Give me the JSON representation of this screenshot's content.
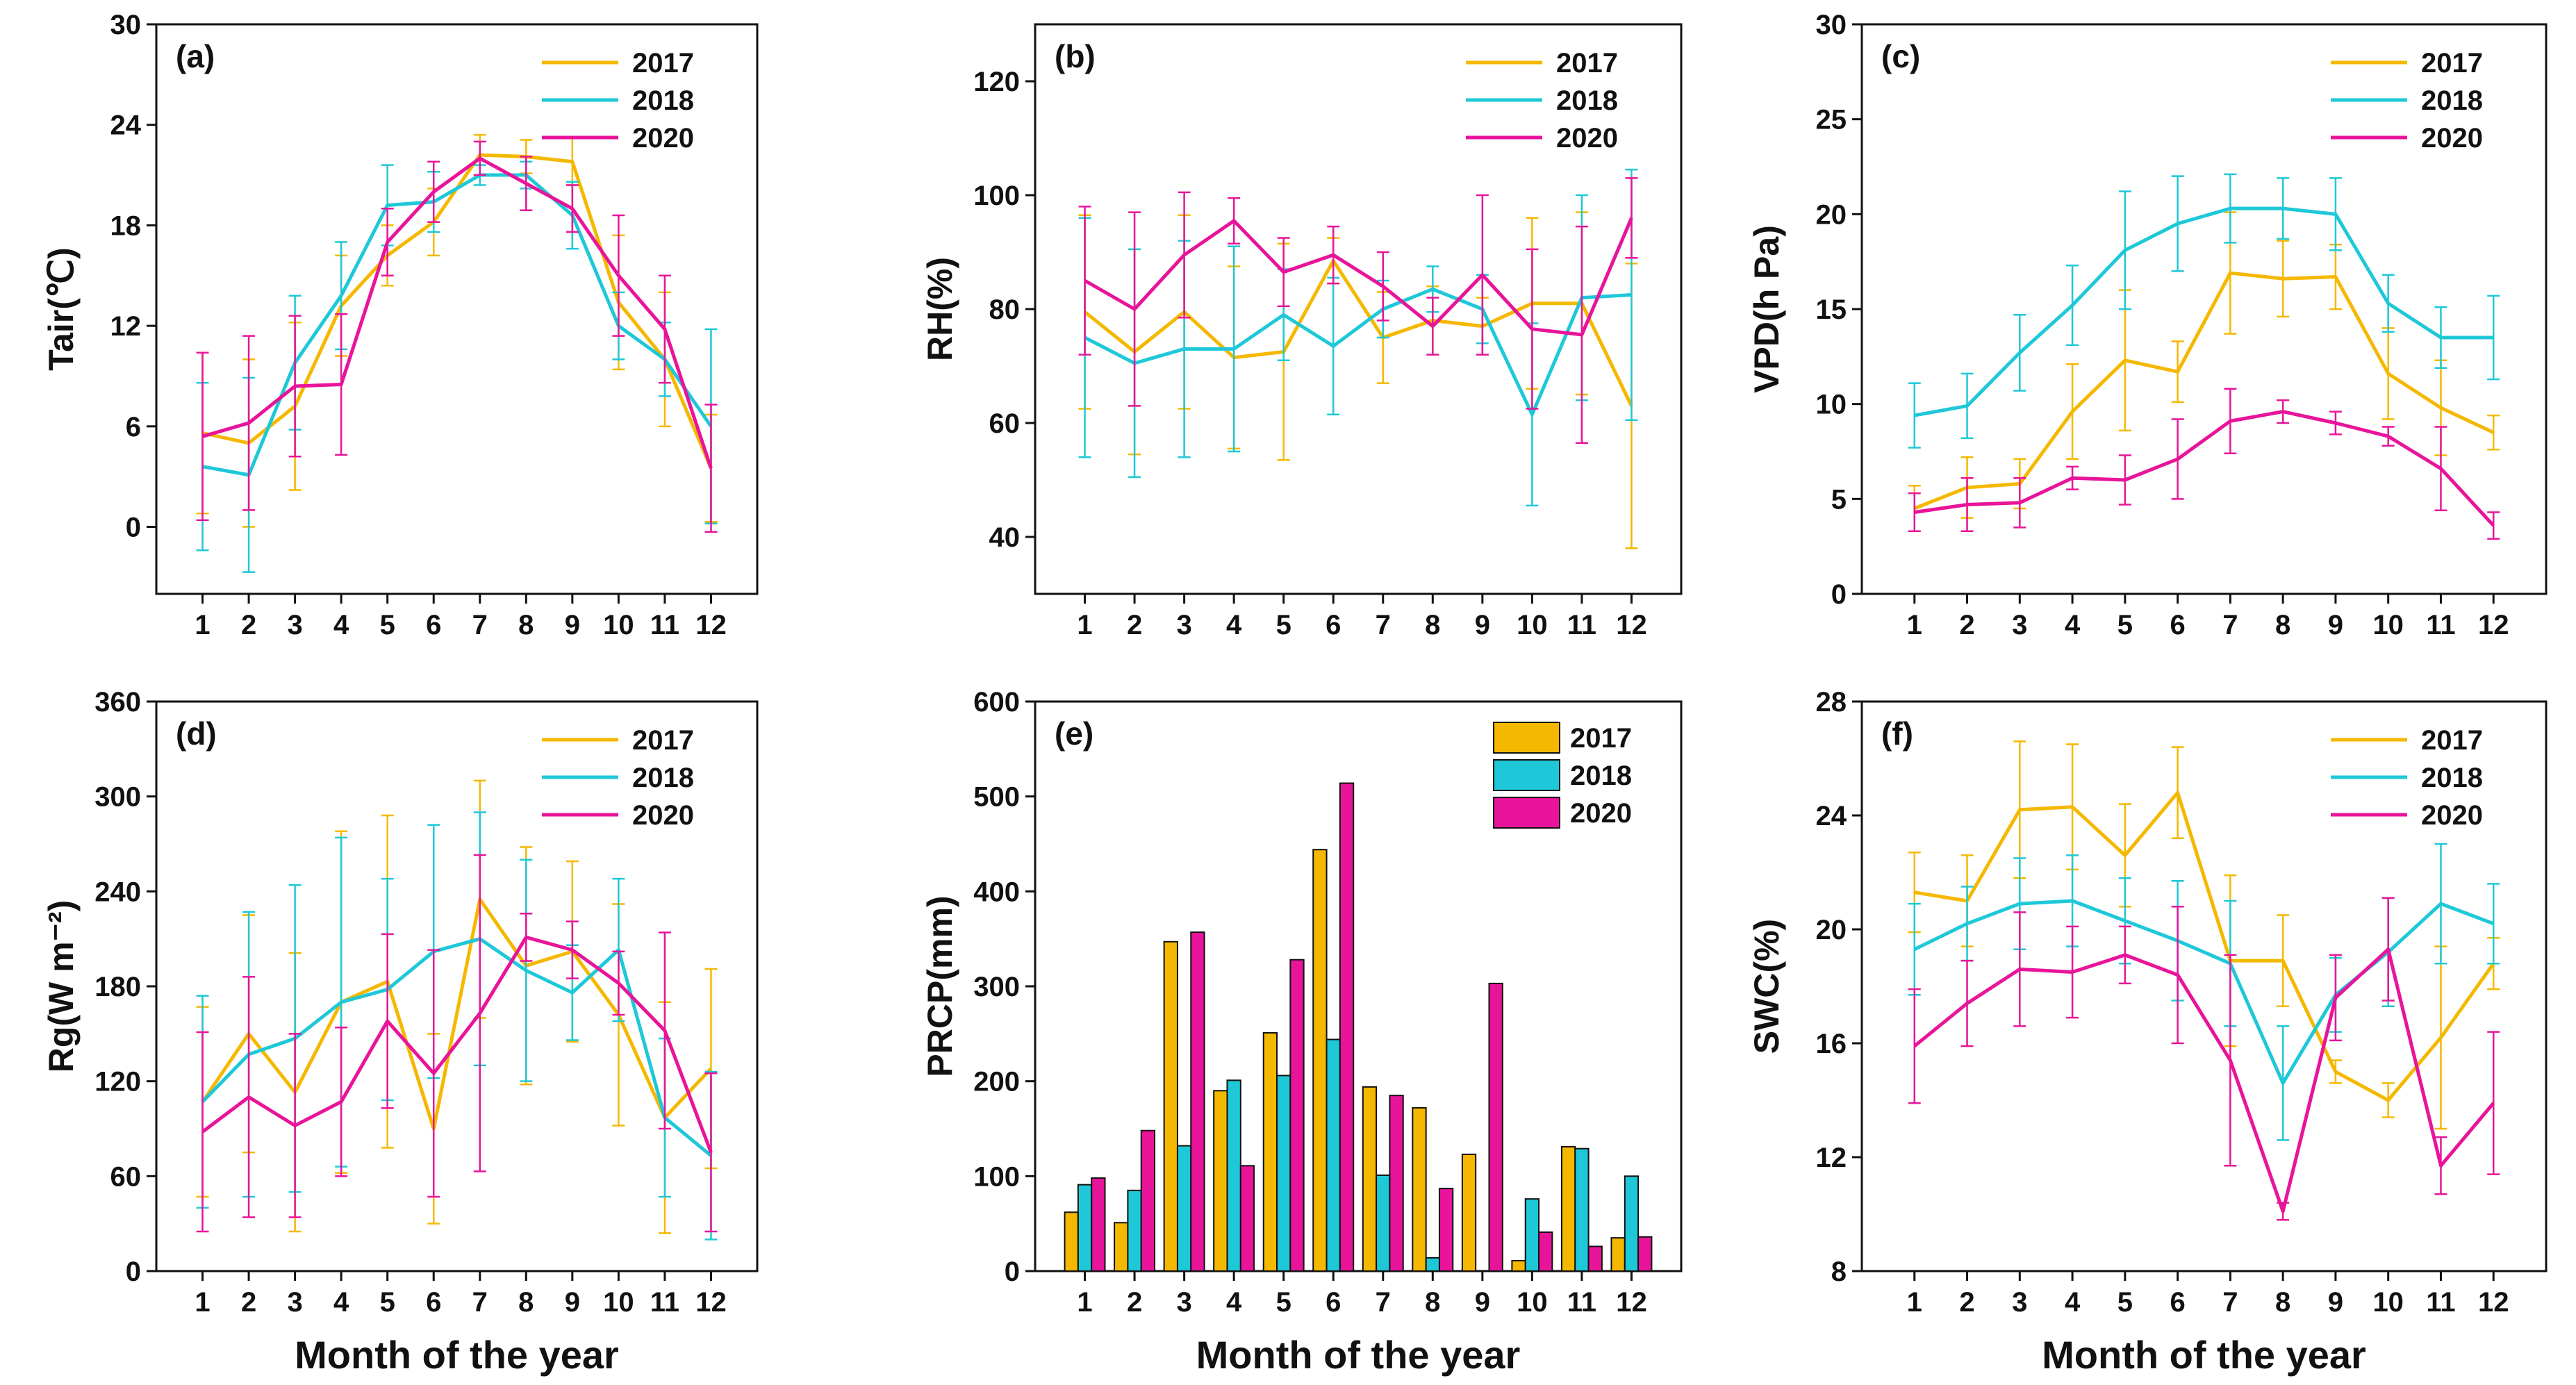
{
  "colors": {
    "2017": "#F5B800",
    "2018": "#1EC8D8",
    "2020": "#E8149A"
  },
  "chart_data": [
    {
      "id": "a",
      "type": "line",
      "panel_label": "(a)",
      "ylabel": "Tair(℃)",
      "xlabel": "",
      "x": [
        1,
        2,
        3,
        4,
        5,
        6,
        7,
        8,
        9,
        10,
        11,
        12
      ],
      "x_tick_labels": [
        "1",
        "2",
        "3",
        "4",
        "5",
        "6",
        "7",
        "8",
        "9",
        "10",
        "11",
        "12"
      ],
      "ylim": [
        -4,
        30
      ],
      "y_tick_values": [
        0,
        6,
        12,
        18,
        24,
        30
      ],
      "y_tick_labels": [
        "0",
        "6",
        "12",
        "18",
        "24",
        "30"
      ],
      "legend_position": "top-right",
      "series": [
        {
          "name": "2017",
          "values": [
            5.6,
            5.0,
            7.2,
            13.2,
            16.2,
            18.2,
            22.2,
            22.1,
            21.8,
            13.4,
            10.0,
            3.5
          ],
          "errors": [
            4.8,
            5.0,
            5.0,
            3.0,
            1.8,
            2.0,
            1.2,
            1.0,
            1.4,
            4.0,
            4.0,
            3.2
          ]
        },
        {
          "name": "2018",
          "values": [
            3.6,
            3.1,
            9.8,
            13.8,
            19.2,
            19.4,
            21.0,
            21.0,
            18.6,
            12.0,
            10.0,
            6.0
          ],
          "errors": [
            5.0,
            5.8,
            4.0,
            3.2,
            2.4,
            1.8,
            0.6,
            0.8,
            2.0,
            2.0,
            2.2,
            5.8
          ]
        },
        {
          "name": "2020",
          "values": [
            5.4,
            6.2,
            8.4,
            8.5,
            17.0,
            20.0,
            22.0,
            20.5,
            19.0,
            15.0,
            11.8,
            3.5
          ],
          "errors": [
            5.0,
            5.2,
            4.2,
            4.2,
            2.0,
            1.8,
            1.0,
            1.6,
            1.4,
            3.6,
            3.2,
            3.8
          ]
        }
      ]
    },
    {
      "id": "b",
      "type": "line",
      "panel_label": "(b)",
      "ylabel": "RH(%)",
      "xlabel": "",
      "x": [
        1,
        2,
        3,
        4,
        5,
        6,
        7,
        8,
        9,
        10,
        11,
        12
      ],
      "x_tick_labels": [
        "1",
        "2",
        "3",
        "4",
        "5",
        "6",
        "7",
        "8",
        "9",
        "10",
        "11",
        "12"
      ],
      "ylim": [
        30,
        130
      ],
      "y_tick_values": [
        40,
        60,
        80,
        100,
        120
      ],
      "y_tick_labels": [
        "40",
        "60",
        "80",
        "100",
        "120"
      ],
      "legend_position": "top-right",
      "series": [
        {
          "name": "2017",
          "values": [
            79.5,
            72.5,
            79.5,
            71.5,
            72.5,
            88.5,
            75.0,
            78.0,
            77.0,
            81.0,
            81.0,
            63.0
          ],
          "errors": [
            17,
            18,
            17,
            16,
            19,
            4,
            8,
            6,
            5,
            15,
            16,
            25
          ]
        },
        {
          "name": "2018",
          "values": [
            75.0,
            70.5,
            73.0,
            73.0,
            79.0,
            73.5,
            80.0,
            83.5,
            80.0,
            61.5,
            82.0,
            82.5
          ],
          "errors": [
            21,
            20,
            19,
            18,
            8,
            12,
            5,
            4,
            6,
            16,
            18,
            22
          ]
        },
        {
          "name": "2020",
          "values": [
            85.0,
            80.0,
            89.5,
            95.5,
            86.5,
            89.5,
            84.0,
            77.0,
            86.0,
            76.5,
            75.5,
            96.0
          ],
          "errors": [
            13,
            17,
            11,
            4,
            6,
            5,
            6,
            5,
            14,
            14,
            19,
            7
          ]
        }
      ]
    },
    {
      "id": "c",
      "type": "line",
      "panel_label": "(c)",
      "ylabel": "VPD(h Pa)",
      "xlabel": "",
      "x": [
        1,
        2,
        3,
        4,
        5,
        6,
        7,
        8,
        9,
        10,
        11,
        12
      ],
      "x_tick_labels": [
        "1",
        "2",
        "3",
        "4",
        "5",
        "6",
        "7",
        "8",
        "9",
        "10",
        "11",
        "12"
      ],
      "ylim": [
        0,
        30
      ],
      "y_tick_values": [
        0,
        5,
        10,
        15,
        20,
        25,
        30
      ],
      "y_tick_labels": [
        "0",
        "5",
        "10",
        "15",
        "20",
        "25",
        "30"
      ],
      "legend_position": "top-right",
      "series": [
        {
          "name": "2017",
          "values": [
            4.5,
            5.6,
            5.8,
            9.6,
            12.3,
            11.7,
            16.9,
            16.6,
            16.7,
            11.6,
            9.8,
            8.5
          ],
          "errors": [
            1.2,
            1.6,
            1.3,
            2.5,
            3.7,
            1.6,
            3.2,
            2.0,
            1.7,
            2.4,
            2.5,
            0.9
          ]
        },
        {
          "name": "2018",
          "values": [
            9.4,
            9.9,
            12.7,
            15.2,
            18.1,
            19.5,
            20.3,
            20.3,
            20.0,
            15.3,
            13.5,
            13.5
          ],
          "errors": [
            1.7,
            1.7,
            2.0,
            2.1,
            3.1,
            2.5,
            1.8,
            1.6,
            1.9,
            1.5,
            1.6,
            2.2
          ]
        },
        {
          "name": "2020",
          "values": [
            4.3,
            4.7,
            4.8,
            6.1,
            6.0,
            7.1,
            9.1,
            9.6,
            9.0,
            8.3,
            6.6,
            3.6
          ],
          "errors": [
            1.0,
            1.4,
            1.3,
            0.6,
            1.3,
            2.1,
            1.7,
            0.6,
            0.6,
            0.5,
            2.2,
            0.7
          ]
        }
      ]
    },
    {
      "id": "d",
      "type": "line",
      "panel_label": "(d)",
      "ylabel": "Rg(W m⁻²)",
      "xlabel": "Month of the year",
      "x": [
        1,
        2,
        3,
        4,
        5,
        6,
        7,
        8,
        9,
        10,
        11,
        12
      ],
      "x_tick_labels": [
        "1",
        "2",
        "3",
        "4",
        "5",
        "6",
        "7",
        "8",
        "9",
        "10",
        "11",
        "12"
      ],
      "ylim": [
        0,
        360
      ],
      "y_tick_values": [
        0,
        60,
        120,
        180,
        240,
        300,
        360
      ],
      "y_tick_labels": [
        "0",
        "60",
        "120",
        "180",
        "240",
        "300",
        "360"
      ],
      "legend_position": "top-right",
      "series": [
        {
          "name": "2017",
          "values": [
            107,
            150,
            113,
            170,
            183,
            90,
            235,
            193,
            202,
            162,
            97,
            128
          ],
          "errors": [
            60,
            75,
            88,
            108,
            105,
            60,
            75,
            75,
            57,
            70,
            73,
            63
          ]
        },
        {
          "name": "2018",
          "values": [
            107,
            137,
            147,
            170,
            178,
            202,
            210,
            190,
            176,
            203,
            97,
            73
          ],
          "errors": [
            67,
            90,
            97,
            104,
            70,
            80,
            80,
            70,
            30,
            45,
            50,
            53
          ]
        },
        {
          "name": "2020",
          "values": [
            88,
            110,
            92,
            107,
            158,
            125,
            163,
            211,
            203,
            182,
            152,
            75
          ],
          "errors": [
            63,
            76,
            58,
            47,
            55,
            78,
            100,
            15,
            18,
            20,
            62,
            50
          ]
        }
      ]
    },
    {
      "id": "e",
      "type": "bar",
      "panel_label": "(e)",
      "ylabel": "PRCP(mm)",
      "xlabel": "Month of the year",
      "categories": [
        "1",
        "2",
        "3",
        "4",
        "5",
        "6",
        "7",
        "8",
        "9",
        "10",
        "11",
        "12"
      ],
      "ylim": [
        0,
        600
      ],
      "y_tick_values": [
        0,
        100,
        200,
        300,
        400,
        500,
        600
      ],
      "y_tick_labels": [
        "0",
        "100",
        "200",
        "300",
        "400",
        "500",
        "600"
      ],
      "legend_position": "top-right",
      "series": [
        {
          "name": "2017",
          "values": [
            62,
            51,
            347,
            190,
            251,
            444,
            194,
            172,
            123,
            11,
            131,
            35
          ]
        },
        {
          "name": "2018",
          "values": [
            91,
            85,
            132,
            201,
            206,
            244,
            101,
            14,
            0,
            76,
            129,
            100
          ]
        },
        {
          "name": "2020",
          "values": [
            98,
            148,
            357,
            111,
            328,
            514,
            185,
            87,
            303,
            41,
            26,
            36
          ]
        }
      ]
    },
    {
      "id": "f",
      "type": "line",
      "panel_label": "(f)",
      "ylabel": "SWC(%)",
      "xlabel": "Month of the year",
      "x": [
        1,
        2,
        3,
        4,
        5,
        6,
        7,
        8,
        9,
        10,
        11,
        12
      ],
      "x_tick_labels": [
        "1",
        "2",
        "3",
        "4",
        "5",
        "6",
        "7",
        "8",
        "9",
        "10",
        "11",
        "12"
      ],
      "ylim": [
        8,
        28
      ],
      "y_tick_values": [
        8,
        12,
        16,
        20,
        24,
        28
      ],
      "y_tick_labels": [
        "8",
        "12",
        "16",
        "20",
        "24",
        "28"
      ],
      "legend_position": "top-right",
      "series": [
        {
          "name": "2017",
          "values": [
            21.3,
            21.0,
            24.2,
            24.3,
            22.6,
            24.8,
            18.9,
            18.9,
            15.0,
            14.0,
            16.2,
            18.8
          ],
          "errors": [
            1.4,
            1.6,
            2.4,
            2.2,
            1.8,
            1.6,
            3.0,
            1.6,
            0.4,
            0.6,
            3.2,
            0.9
          ]
        },
        {
          "name": "2018",
          "values": [
            19.3,
            20.2,
            20.9,
            21.0,
            20.3,
            19.6,
            18.8,
            14.6,
            17.7,
            19.2,
            20.9,
            20.2
          ],
          "errors": [
            1.6,
            1.3,
            1.6,
            1.6,
            1.5,
            2.1,
            2.2,
            2.0,
            1.3,
            1.9,
            2.1,
            1.4
          ]
        },
        {
          "name": "2020",
          "values": [
            15.9,
            17.4,
            18.6,
            18.5,
            19.1,
            18.4,
            15.4,
            10.1,
            17.6,
            19.3,
            11.7,
            13.9
          ],
          "errors": [
            2.0,
            1.5,
            2.0,
            1.6,
            1.0,
            2.4,
            3.7,
            0.3,
            1.5,
            1.8,
            1.0,
            2.5
          ]
        }
      ]
    }
  ]
}
